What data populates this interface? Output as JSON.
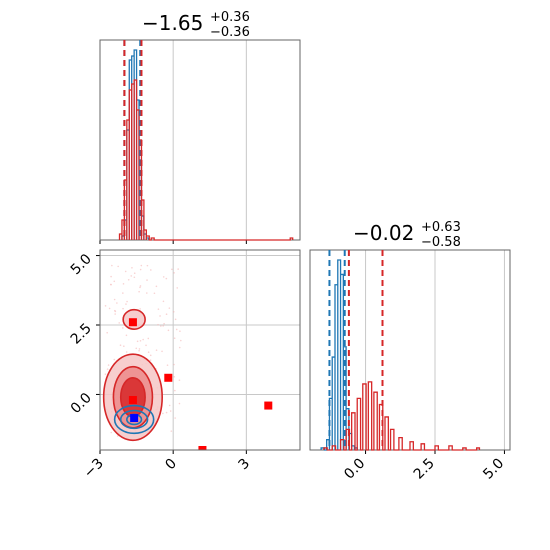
{
  "chart_data": [
    {
      "type": "histogram",
      "panel": "top-left",
      "title": {
        "value": "−1.65",
        "plus": "+0.36",
        "minus": "−0.36"
      },
      "xlim": [
        -3,
        5.2
      ],
      "x_ticks": [
        -3,
        0,
        3
      ],
      "grid": true,
      "series": [
        {
          "color": "#1f77b4",
          "x": [
            -2.1,
            -2.0,
            -1.9,
            -1.8,
            -1.7,
            -1.6,
            -1.5,
            -1.4,
            -1.3,
            -1.2,
            -1.1
          ],
          "values": [
            0.02,
            0.1,
            0.55,
            0.9,
            0.92,
            0.95,
            0.7,
            0.4,
            0.12,
            0.03,
            0.01
          ]
        },
        {
          "color": "#d62728",
          "x": [
            -2.2,
            -2.1,
            -2.0,
            -1.9,
            -1.8,
            -1.7,
            -1.6,
            -1.5,
            -1.4,
            -1.3,
            -1.2,
            -1.1,
            -0.9,
            4.8
          ],
          "values": [
            0.03,
            0.1,
            0.3,
            0.6,
            0.75,
            0.78,
            0.8,
            0.65,
            0.5,
            0.2,
            0.05,
            0.02,
            0.01,
            0.01
          ]
        }
      ],
      "quantile_lines": [
        {
          "color": "#1f77b4",
          "values": [
            -2.0,
            -1.35
          ]
        },
        {
          "color": "#d62728",
          "values": [
            -2.0,
            -1.3
          ]
        }
      ]
    },
    {
      "type": "histogram",
      "panel": "bottom-right",
      "title": {
        "value": "−0.02",
        "plus": "+0.63",
        "minus": "−0.58"
      },
      "xlim": [
        -2,
        5.2
      ],
      "x_ticks": [
        0.0,
        2.5,
        5.0
      ],
      "x_tick_labels": [
        "0.0",
        "2.5",
        "5.0"
      ],
      "grid": true,
      "series": [
        {
          "color": "#1f77b4",
          "x": [
            -1.6,
            -1.4,
            -1.3,
            -1.2,
            -1.1,
            -1.0,
            -0.9,
            -0.8,
            -0.7,
            -0.6,
            -0.5,
            -0.4
          ],
          "values": [
            0.01,
            0.05,
            0.25,
            0.45,
            0.8,
            0.92,
            0.85,
            0.5,
            0.2,
            0.08,
            0.02,
            0.01
          ]
        },
        {
          "color": "#d62728",
          "x": [
            -1.5,
            -1.2,
            -0.9,
            -0.7,
            -0.5,
            -0.3,
            -0.1,
            0.1,
            0.3,
            0.5,
            0.7,
            0.9,
            1.2,
            1.6,
            2.0,
            2.5,
            3.0,
            3.5,
            4.0
          ],
          "values": [
            0.01,
            0.02,
            0.05,
            0.1,
            0.18,
            0.25,
            0.32,
            0.33,
            0.28,
            0.22,
            0.16,
            0.1,
            0.06,
            0.04,
            0.03,
            0.02,
            0.02,
            0.01,
            0.01
          ]
        }
      ],
      "quantile_lines": [
        {
          "color": "#1f77b4",
          "values": [
            -1.3,
            -0.75
          ]
        },
        {
          "color": "#d62728",
          "values": [
            -0.6,
            0.61
          ]
        }
      ]
    },
    {
      "type": "scatter",
      "panel": "bottom-left",
      "xlim": [
        -3,
        5.2
      ],
      "ylim": [
        -2,
        5.2
      ],
      "x_ticks": [
        -3,
        0,
        3
      ],
      "y_ticks": [
        0.0,
        2.5,
        5.0
      ],
      "y_tick_labels": [
        "0.0",
        "2.5",
        "5.0"
      ],
      "grid": true,
      "contours": [
        {
          "color": "#d62728",
          "cx": -1.65,
          "cy": -0.1,
          "rx": [
            1.2,
            0.8,
            0.5
          ],
          "ry": [
            1.55,
            1.1,
            0.7
          ]
        },
        {
          "color": "#d62728",
          "cx": -1.6,
          "cy": 2.7,
          "rx": [
            0.45
          ],
          "ry": [
            0.35
          ]
        },
        {
          "color": "#1f77b4",
          "cx": -1.6,
          "cy": -0.9,
          "rx": [
            0.8,
            0.55,
            0.3
          ],
          "ry": [
            0.5,
            0.32,
            0.18
          ]
        }
      ],
      "red_markers": {
        "x": [
          -1.65,
          -1.65,
          -0.2,
          1.2,
          3.9
        ],
        "y": [
          2.6,
          -0.2,
          0.6,
          -2.0,
          -0.4
        ]
      },
      "blue_markers": {
        "x": [
          -1.6
        ],
        "y": [
          -0.85
        ]
      }
    }
  ]
}
